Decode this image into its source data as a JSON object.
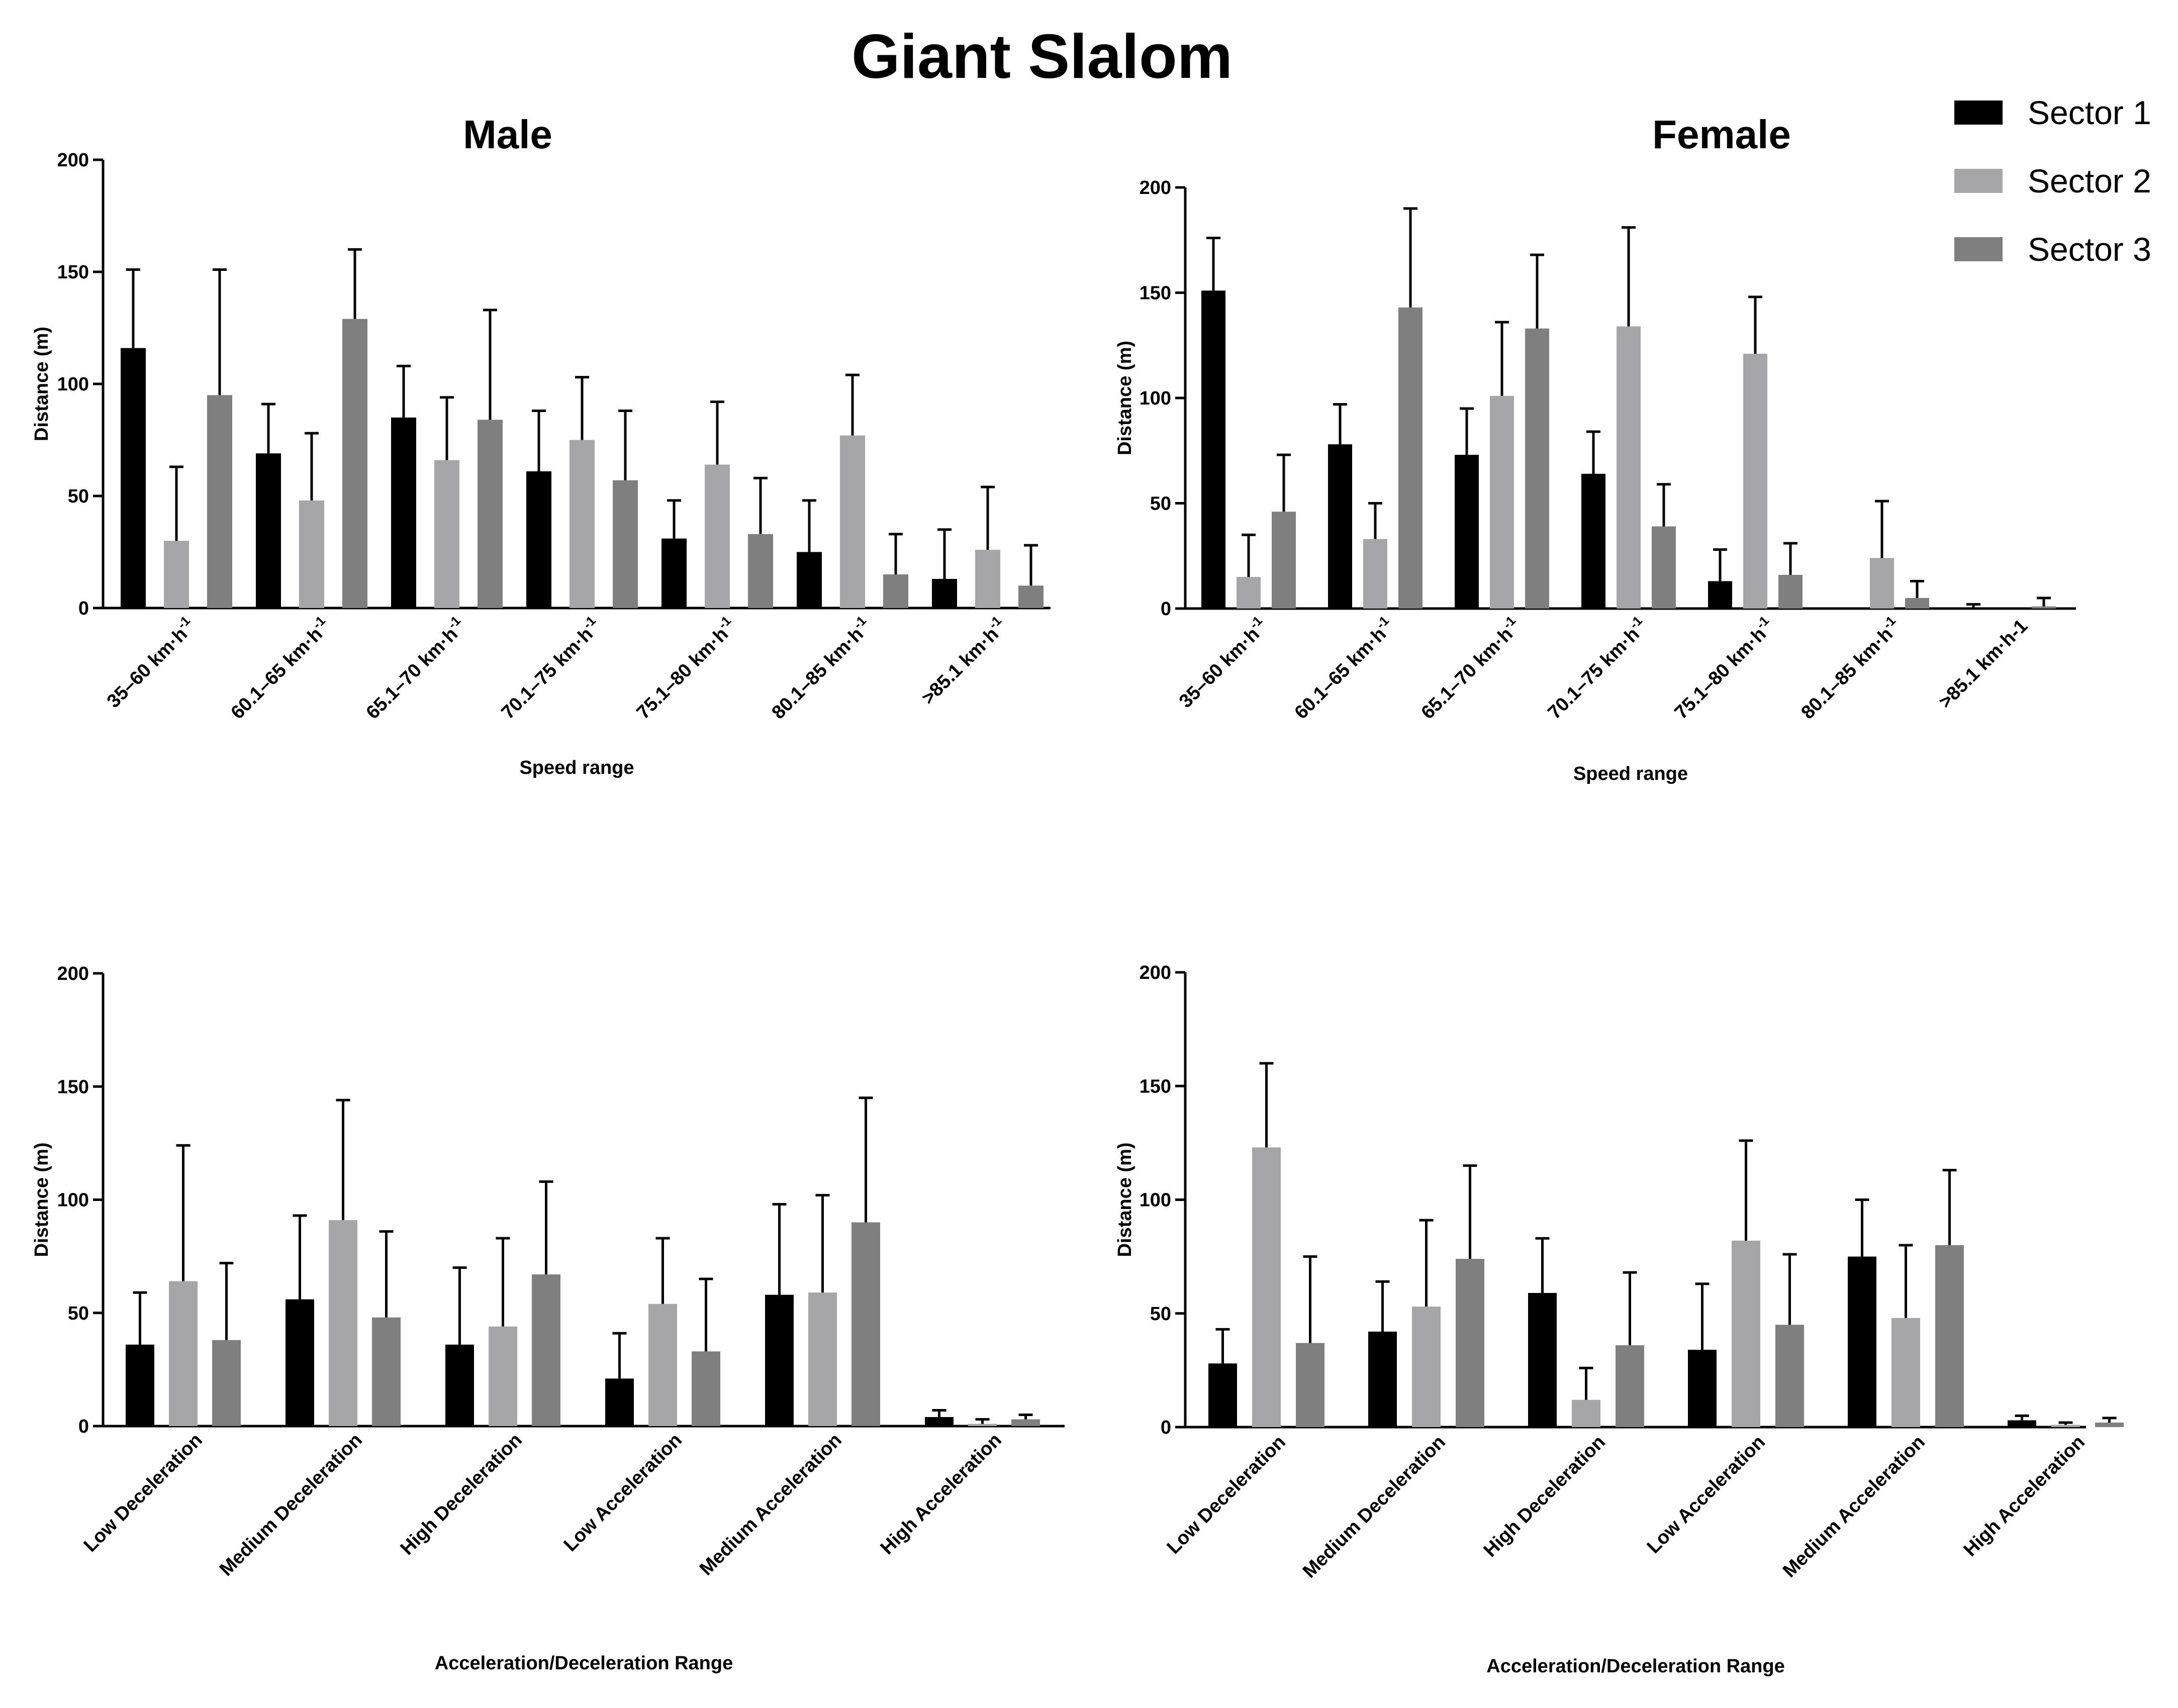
{
  "title": "Giant Slalom",
  "colors": {
    "sector1": "#000000",
    "sector2": "#a6a6a8",
    "sector3": "#7f7f7f"
  },
  "legend": [
    "Sector 1",
    "Sector 2",
    "Sector 3"
  ],
  "chart_data": [
    {
      "id": "male-speed",
      "type": "bar",
      "title": "Male",
      "xlabel": "Speed range",
      "ylabel": "Distance (m)",
      "ylim": [
        0,
        200
      ],
      "yticks": [
        "0",
        "50",
        "100",
        "150",
        "200"
      ],
      "categories": [
        "35–60 km·h",
        "60.1–65 km·h",
        "65.1–70 km·h",
        "70.1–75 km·h",
        "75.1–80 km·h",
        "80.1–85 km·h",
        ">85.1 km·h"
      ],
      "category_superscripts": [
        "-1",
        "-1",
        "-1",
        "-1",
        "-1",
        "-1",
        "-1"
      ],
      "series": [
        {
          "name": "Sector 1",
          "values": [
            116,
            69,
            85,
            61,
            31,
            25,
            13
          ],
          "errors": [
            35,
            22,
            23,
            27,
            17,
            23,
            22
          ]
        },
        {
          "name": "Sector 2",
          "values": [
            30,
            48,
            66,
            75,
            64,
            77,
            26
          ],
          "errors": [
            33,
            30,
            28,
            28,
            28,
            27,
            28
          ]
        },
        {
          "name": "Sector 3",
          "values": [
            95,
            129,
            84,
            57,
            33,
            15,
            10
          ],
          "errors": [
            56,
            31,
            49,
            31,
            25,
            18,
            18
          ]
        }
      ]
    },
    {
      "id": "female-speed",
      "type": "bar",
      "title": "Female",
      "xlabel": "Speed range",
      "ylabel": "Distance (m)",
      "ylim": [
        0,
        200
      ],
      "yticks": [
        "0",
        "50",
        "100",
        "150",
        "200"
      ],
      "categories": [
        "35–60 km·h",
        "60.1–65 km·h",
        "65.1–70 km·h",
        "70.1–75 km·h",
        "75.1–80 km·h",
        "80.1–85 km·h",
        ">85.1 km·h-1"
      ],
      "category_superscripts": [
        "-1",
        "-1",
        "-1",
        "-1",
        "-1",
        "-1",
        ""
      ],
      "series": [
        {
          "name": "Sector 1",
          "values": [
            151,
            78,
            73,
            64,
            13,
            0,
            0
          ],
          "errors": [
            25,
            19,
            22,
            20,
            15,
            0,
            2
          ]
        },
        {
          "name": "Sector 2",
          "values": [
            15,
            33,
            101,
            134,
            121,
            24,
            0
          ],
          "errors": [
            20,
            17,
            35,
            47,
            27,
            27,
            0
          ]
        },
        {
          "name": "Sector 3",
          "values": [
            46,
            143,
            133,
            39,
            16,
            5,
            1
          ],
          "errors": [
            27,
            47,
            35,
            20,
            15,
            8,
            4
          ]
        }
      ]
    },
    {
      "id": "male-acc",
      "type": "bar",
      "title": "",
      "xlabel": "Acceleration/Deceleration Range",
      "ylabel": "Distance (m)",
      "ylim": [
        0,
        200
      ],
      "yticks": [
        "0",
        "50",
        "100",
        "150",
        "200"
      ],
      "categories": [
        "Low Deceleration",
        "Medium Deceleration",
        "High Deceleration",
        "Low Acceleration",
        "Medium Acceleration",
        "High Acceleration"
      ],
      "series": [
        {
          "name": "Sector 1",
          "values": [
            36,
            56,
            36,
            21,
            58,
            4
          ],
          "errors": [
            23,
            37,
            34,
            20,
            40,
            3
          ]
        },
        {
          "name": "Sector 2",
          "values": [
            64,
            91,
            44,
            54,
            59,
            1
          ],
          "errors": [
            60,
            53,
            39,
            29,
            43,
            2
          ]
        },
        {
          "name": "Sector 3",
          "values": [
            38,
            48,
            67,
            33,
            90,
            3
          ],
          "errors": [
            34,
            38,
            41,
            32,
            55,
            2
          ]
        }
      ]
    },
    {
      "id": "female-acc",
      "type": "bar",
      "title": "",
      "xlabel": "Acceleration/Deceleration Range",
      "ylabel": "Distance (m)",
      "ylim": [
        0,
        200
      ],
      "yticks": [
        "0",
        "50",
        "100",
        "150",
        "200"
      ],
      "categories": [
        "Low Deceleration",
        "Medium Deceleration",
        "High Deceleration",
        "Low Acceleration",
        "Medium Acceleration",
        "High Acceleration"
      ],
      "series": [
        {
          "name": "Sector 1",
          "values": [
            28,
            42,
            59,
            34,
            75,
            3
          ],
          "errors": [
            15,
            22,
            24,
            29,
            25,
            2
          ]
        },
        {
          "name": "Sector 2",
          "values": [
            123,
            53,
            12,
            82,
            48,
            1
          ],
          "errors": [
            37,
            38,
            14,
            44,
            32,
            1
          ]
        },
        {
          "name": "Sector 3",
          "values": [
            37,
            74,
            36,
            45,
            80,
            2
          ],
          "errors": [
            38,
            41,
            32,
            31,
            33,
            2
          ]
        }
      ]
    }
  ]
}
